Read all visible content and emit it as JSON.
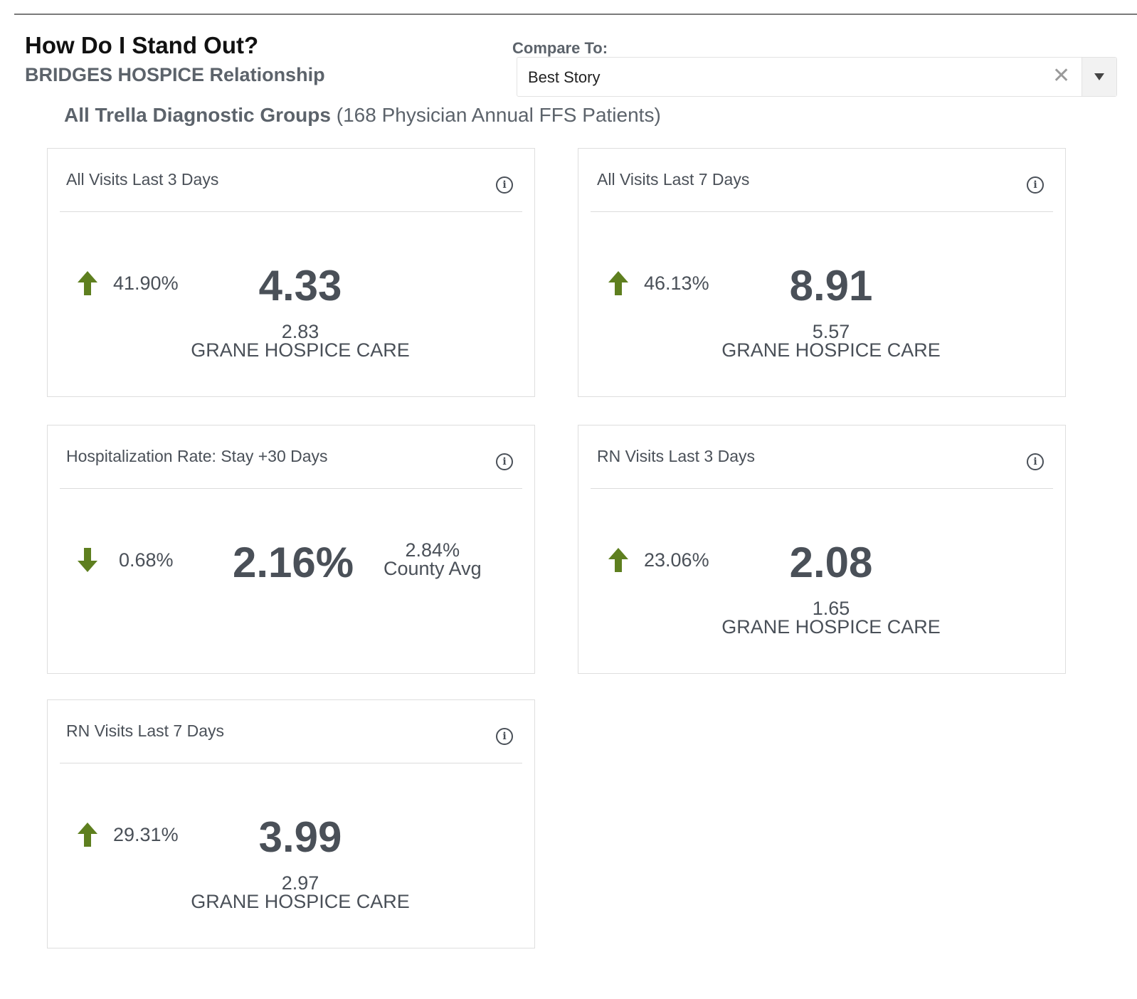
{
  "header": {
    "title": "How Do I Stand Out?",
    "subtitle": "BRIDGES HOSPICE Relationship"
  },
  "compare": {
    "label": "Compare To:",
    "value": "Best Story"
  },
  "group": {
    "name": "All Trella Diagnostic Groups",
    "detail": "(168 Physician Annual FFS Patients)"
  },
  "colors": {
    "trend_arrow": "#5e7f1f",
    "text": "#4a5058"
  },
  "cards": [
    {
      "title": "All Visits Last 3 Days",
      "direction": "up",
      "pct": "41.90%",
      "value": "4.33",
      "compare_value": "2.83",
      "compare_label": "GRANE HOSPICE CARE"
    },
    {
      "title": "All Visits Last 7 Days",
      "direction": "up",
      "pct": "46.13%",
      "value": "8.91",
      "compare_value": "5.57",
      "compare_label": "GRANE HOSPICE CARE"
    },
    {
      "title": "Hospitalization Rate: Stay +30 Days",
      "direction": "down",
      "pct": "0.68%",
      "value": "2.16%",
      "compare_value": "2.84%",
      "compare_label": "County Avg"
    },
    {
      "title": "RN Visits Last 3 Days",
      "direction": "up",
      "pct": "23.06%",
      "value": "2.08",
      "compare_value": "1.65",
      "compare_label": "GRANE HOSPICE CARE"
    },
    {
      "title": "RN Visits Last 7 Days",
      "direction": "up",
      "pct": "29.31%",
      "value": "3.99",
      "compare_value": "2.97",
      "compare_label": "GRANE HOSPICE CARE"
    }
  ]
}
